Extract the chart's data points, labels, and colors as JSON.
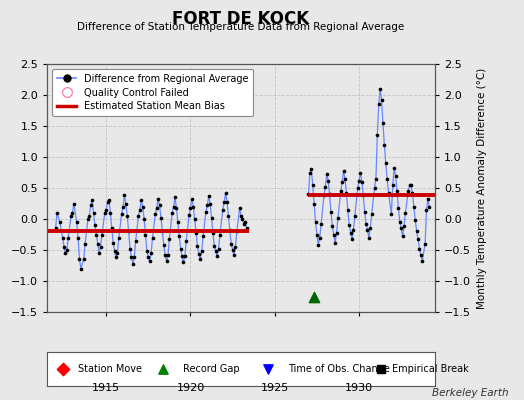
{
  "title": "FORT DE KOCK",
  "subtitle": "Difference of Station Temperature Data from Regional Average",
  "ylabel": "Monthly Temperature Anomaly Difference (°C)",
  "xlim": [
    1911.5,
    1934.5
  ],
  "ylim": [
    -1.5,
    2.5
  ],
  "yticks": [
    -1.5,
    -1.0,
    -0.5,
    0.0,
    0.5,
    1.0,
    1.5,
    2.0,
    2.5
  ],
  "xticks": [
    1915,
    1920,
    1925,
    1930
  ],
  "background_color": "#e8e8e8",
  "segment1_bias": -0.2,
  "segment2_bias": 0.38,
  "segment1_xstart": 1911.5,
  "segment1_xend": 1923.5,
  "segment2_xstart": 1927.0,
  "segment2_xend": 1934.5,
  "record_gap_x": 1927.3,
  "record_gap_y": -1.25,
  "segment1_data": [
    [
      1912.0,
      -0.15
    ],
    [
      1912.083,
      0.1
    ],
    [
      1912.25,
      -0.05
    ],
    [
      1912.417,
      -0.3
    ],
    [
      1912.5,
      -0.45
    ],
    [
      1912.583,
      -0.55
    ],
    [
      1912.667,
      -0.5
    ],
    [
      1912.75,
      -0.3
    ],
    [
      1912.917,
      0.05
    ],
    [
      1913.0,
      0.1
    ],
    [
      1913.083,
      0.25
    ],
    [
      1913.25,
      -0.05
    ],
    [
      1913.333,
      -0.3
    ],
    [
      1913.417,
      -0.65
    ],
    [
      1913.5,
      -0.8
    ],
    [
      1913.667,
      -0.65
    ],
    [
      1913.75,
      -0.4
    ],
    [
      1913.917,
      0.0
    ],
    [
      1914.0,
      0.05
    ],
    [
      1914.083,
      0.22
    ],
    [
      1914.167,
      0.3
    ],
    [
      1914.25,
      0.1
    ],
    [
      1914.333,
      -0.1
    ],
    [
      1914.417,
      -0.25
    ],
    [
      1914.5,
      -0.4
    ],
    [
      1914.583,
      -0.55
    ],
    [
      1914.667,
      -0.45
    ],
    [
      1914.75,
      -0.25
    ],
    [
      1914.917,
      0.1
    ],
    [
      1915.0,
      0.15
    ],
    [
      1915.083,
      0.28
    ],
    [
      1915.167,
      0.3
    ],
    [
      1915.25,
      0.1
    ],
    [
      1915.333,
      -0.15
    ],
    [
      1915.417,
      -0.38
    ],
    [
      1915.5,
      -0.52
    ],
    [
      1915.583,
      -0.62
    ],
    [
      1915.667,
      -0.55
    ],
    [
      1915.75,
      -0.3
    ],
    [
      1915.917,
      0.08
    ],
    [
      1916.0,
      0.2
    ],
    [
      1916.083,
      0.38
    ],
    [
      1916.167,
      0.25
    ],
    [
      1916.25,
      0.05
    ],
    [
      1916.333,
      -0.2
    ],
    [
      1916.417,
      -0.48
    ],
    [
      1916.5,
      -0.62
    ],
    [
      1916.583,
      -0.72
    ],
    [
      1916.667,
      -0.62
    ],
    [
      1916.75,
      -0.35
    ],
    [
      1916.917,
      0.05
    ],
    [
      1917.0,
      0.15
    ],
    [
      1917.083,
      0.3
    ],
    [
      1917.167,
      0.2
    ],
    [
      1917.25,
      0.0
    ],
    [
      1917.333,
      -0.25
    ],
    [
      1917.417,
      -0.52
    ],
    [
      1917.5,
      -0.62
    ],
    [
      1917.583,
      -0.68
    ],
    [
      1917.667,
      -0.55
    ],
    [
      1917.75,
      -0.3
    ],
    [
      1917.917,
      0.08
    ],
    [
      1918.0,
      0.18
    ],
    [
      1918.083,
      0.32
    ],
    [
      1918.167,
      0.22
    ],
    [
      1918.25,
      0.02
    ],
    [
      1918.333,
      -0.2
    ],
    [
      1918.417,
      -0.42
    ],
    [
      1918.5,
      -0.58
    ],
    [
      1918.583,
      -0.68
    ],
    [
      1918.667,
      -0.58
    ],
    [
      1918.75,
      -0.32
    ],
    [
      1918.917,
      0.1
    ],
    [
      1919.0,
      0.2
    ],
    [
      1919.083,
      0.35
    ],
    [
      1919.167,
      0.18
    ],
    [
      1919.25,
      -0.05
    ],
    [
      1919.333,
      -0.28
    ],
    [
      1919.417,
      -0.48
    ],
    [
      1919.5,
      -0.6
    ],
    [
      1919.583,
      -0.7
    ],
    [
      1919.667,
      -0.6
    ],
    [
      1919.75,
      -0.35
    ],
    [
      1919.917,
      0.06
    ],
    [
      1920.0,
      0.18
    ],
    [
      1920.083,
      0.32
    ],
    [
      1920.167,
      0.2
    ],
    [
      1920.25,
      0.0
    ],
    [
      1920.333,
      -0.22
    ],
    [
      1920.417,
      -0.44
    ],
    [
      1920.5,
      -0.57
    ],
    [
      1920.583,
      -0.65
    ],
    [
      1920.667,
      -0.52
    ],
    [
      1920.75,
      -0.28
    ],
    [
      1920.917,
      0.12
    ],
    [
      1921.0,
      0.22
    ],
    [
      1921.083,
      0.37
    ],
    [
      1921.167,
      0.25
    ],
    [
      1921.25,
      0.02
    ],
    [
      1921.333,
      -0.22
    ],
    [
      1921.417,
      -0.44
    ],
    [
      1921.5,
      -0.52
    ],
    [
      1921.583,
      -0.6
    ],
    [
      1921.667,
      -0.48
    ],
    [
      1921.75,
      -0.25
    ],
    [
      1921.917,
      0.15
    ],
    [
      1922.0,
      0.28
    ],
    [
      1922.083,
      0.42
    ],
    [
      1922.167,
      0.28
    ],
    [
      1922.25,
      0.05
    ],
    [
      1922.333,
      -0.18
    ],
    [
      1922.417,
      -0.4
    ],
    [
      1922.5,
      -0.5
    ],
    [
      1922.583,
      -0.58
    ],
    [
      1922.667,
      -0.45
    ],
    [
      1922.75,
      -0.2
    ],
    [
      1922.917,
      0.18
    ],
    [
      1923.0,
      0.05
    ],
    [
      1923.083,
      0.0
    ],
    [
      1923.167,
      -0.08
    ],
    [
      1923.25,
      -0.05
    ],
    [
      1923.333,
      -0.15
    ]
  ],
  "segment2_data": [
    [
      1927.0,
      0.4
    ],
    [
      1927.083,
      0.75
    ],
    [
      1927.167,
      0.8
    ],
    [
      1927.25,
      0.55
    ],
    [
      1927.333,
      0.25
    ],
    [
      1927.417,
      -0.05
    ],
    [
      1927.5,
      -0.25
    ],
    [
      1927.583,
      -0.42
    ],
    [
      1927.667,
      -0.3
    ],
    [
      1927.75,
      -0.08
    ],
    [
      1927.917,
      0.38
    ],
    [
      1928.0,
      0.52
    ],
    [
      1928.083,
      0.72
    ],
    [
      1928.167,
      0.62
    ],
    [
      1928.25,
      0.4
    ],
    [
      1928.333,
      0.12
    ],
    [
      1928.417,
      -0.12
    ],
    [
      1928.5,
      -0.25
    ],
    [
      1928.583,
      -0.38
    ],
    [
      1928.667,
      -0.22
    ],
    [
      1928.75,
      0.02
    ],
    [
      1928.917,
      0.45
    ],
    [
      1929.0,
      0.6
    ],
    [
      1929.083,
      0.78
    ],
    [
      1929.167,
      0.65
    ],
    [
      1929.25,
      0.42
    ],
    [
      1929.333,
      0.15
    ],
    [
      1929.417,
      -0.1
    ],
    [
      1929.5,
      -0.22
    ],
    [
      1929.583,
      -0.32
    ],
    [
      1929.667,
      -0.18
    ],
    [
      1929.75,
      0.05
    ],
    [
      1929.917,
      0.5
    ],
    [
      1930.0,
      0.62
    ],
    [
      1930.083,
      0.75
    ],
    [
      1930.167,
      0.6
    ],
    [
      1930.25,
      0.38
    ],
    [
      1930.333,
      0.12
    ],
    [
      1930.417,
      -0.08
    ],
    [
      1930.5,
      -0.18
    ],
    [
      1930.583,
      -0.3
    ],
    [
      1930.667,
      -0.15
    ],
    [
      1930.75,
      0.08
    ],
    [
      1930.917,
      0.5
    ],
    [
      1931.0,
      0.65
    ],
    [
      1931.083,
      1.35
    ],
    [
      1931.167,
      1.85
    ],
    [
      1931.25,
      2.1
    ],
    [
      1931.333,
      1.92
    ],
    [
      1931.417,
      1.55
    ],
    [
      1931.5,
      1.2
    ],
    [
      1931.583,
      0.9
    ],
    [
      1931.667,
      0.65
    ],
    [
      1931.75,
      0.42
    ],
    [
      1931.917,
      0.08
    ],
    [
      1932.0,
      0.55
    ],
    [
      1932.083,
      0.82
    ],
    [
      1932.167,
      0.7
    ],
    [
      1932.25,
      0.45
    ],
    [
      1932.333,
      0.18
    ],
    [
      1932.417,
      -0.05
    ],
    [
      1932.5,
      -0.15
    ],
    [
      1932.583,
      -0.28
    ],
    [
      1932.667,
      -0.12
    ],
    [
      1932.75,
      0.1
    ],
    [
      1932.917,
      0.45
    ],
    [
      1933.0,
      0.55
    ],
    [
      1933.083,
      0.55
    ],
    [
      1933.167,
      0.42
    ],
    [
      1933.25,
      0.2
    ],
    [
      1933.333,
      -0.02
    ],
    [
      1933.417,
      -0.2
    ],
    [
      1933.5,
      -0.32
    ],
    [
      1933.583,
      -0.48
    ],
    [
      1933.667,
      -0.58
    ],
    [
      1933.75,
      -0.68
    ],
    [
      1933.917,
      -0.4
    ],
    [
      1934.0,
      0.15
    ],
    [
      1934.083,
      0.32
    ],
    [
      1934.167,
      0.2
    ]
  ],
  "line_color": "#6688ff",
  "marker_color": "#000000",
  "bias_color": "#cc0000",
  "record_gap_color": "#006600",
  "grid_color": "#bbbbbb",
  "berkeley_earth_text": "Berkeley Earth"
}
